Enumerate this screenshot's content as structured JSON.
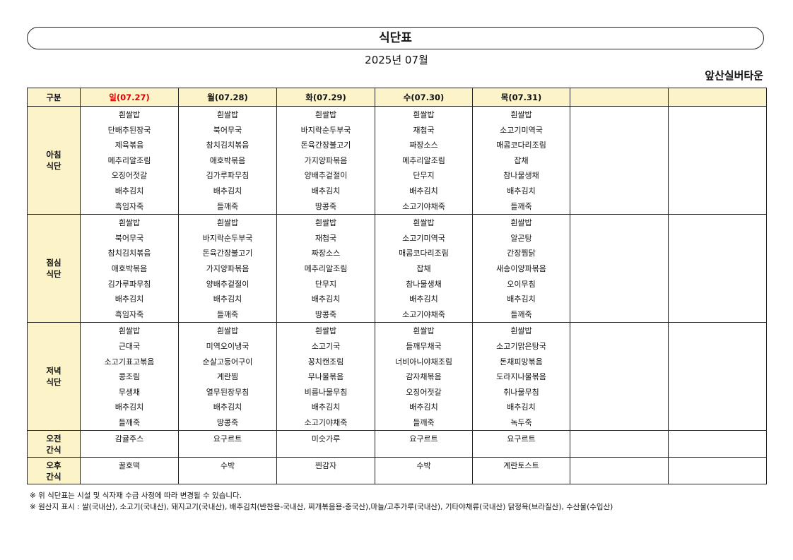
{
  "header": {
    "title": "식단표",
    "month": "2025년 07월",
    "facility": "앞산실버타운"
  },
  "colors": {
    "header_bg": "#fdf3c8",
    "sunday": "#e00000"
  },
  "table": {
    "corner": "구분",
    "days": [
      "일(07.27)",
      "월(07.28)",
      "화(07.29)",
      "수(07.30)",
      "목(07.31)",
      "",
      ""
    ],
    "rows": [
      {
        "label": [
          "아침",
          "식단"
        ],
        "type": "meal",
        "cells": [
          [
            "흰쌀밥",
            "단배추된장국",
            "제육볶음",
            "메추리알조림",
            "오징어젓갈",
            "배추김치",
            "흑임자죽"
          ],
          [
            "흰쌀밥",
            "북어무국",
            "참치김치볶음",
            "애호박볶음",
            "김가루파무침",
            "배추김치",
            "들깨죽"
          ],
          [
            "흰쌀밥",
            "바지락순두부국",
            "돈육간장불고기",
            "가지양파볶음",
            "양배추겉절이",
            "배추김치",
            "땅콩죽"
          ],
          [
            "흰쌀밥",
            "재첩국",
            "짜장소스",
            "메추리알조림",
            "단무지",
            "배추김치",
            "소고기야채죽"
          ],
          [
            "흰쌀밥",
            "소고기미역국",
            "매콤코다리조림",
            "잡채",
            "참나물생채",
            "배추김치",
            "들깨죽"
          ],
          [],
          []
        ]
      },
      {
        "label": [
          "점심",
          "식단"
        ],
        "type": "meal",
        "cells": [
          [
            "흰쌀밥",
            "북어무국",
            "참치김치볶음",
            "애호박볶음",
            "김가루파무침",
            "배추김치",
            "흑임자죽"
          ],
          [
            "흰쌀밥",
            "바지락순두부국",
            "돈육간장불고기",
            "가지양파볶음",
            "양배추겉절이",
            "배추김치",
            "들깨죽"
          ],
          [
            "흰쌀밥",
            "재첩국",
            "짜장소스",
            "메추리알조림",
            "단무지",
            "배추김치",
            "땅콩죽"
          ],
          [
            "흰쌀밥",
            "소고기미역국",
            "매콤코다리조림",
            "잡채",
            "참나물생채",
            "배추김치",
            "소고기야채죽"
          ],
          [
            "흰쌀밥",
            "알곤탕",
            "간장찜닭",
            "새송이양파볶음",
            "오이무침",
            "배추김치",
            "들깨죽"
          ],
          [],
          []
        ]
      },
      {
        "label": [
          "저녁",
          "식단"
        ],
        "type": "meal",
        "cells": [
          [
            "흰쌀밥",
            "근대국",
            "소고기표고볶음",
            "콩조림",
            "무생채",
            "배추김치",
            "들깨죽"
          ],
          [
            "흰쌀밥",
            "미역오이냉국",
            "순살고등어구이",
            "계란찜",
            "열무된장무침",
            "배추김치",
            "땅콩죽"
          ],
          [
            "흰쌀밥",
            "소고기국",
            "꽁치캔조림",
            "무나물볶음",
            "비름나물무침",
            "배추김치",
            "소고기야채죽"
          ],
          [
            "흰쌀밥",
            "들깨무채국",
            "너비아니야채조림",
            "감자채볶음",
            "오징어젓갈",
            "배추김치",
            "들깨죽"
          ],
          [
            "흰쌀밥",
            "소고기맑은탕국",
            "돈채피망볶음",
            "도라지나물볶음",
            "취나물무침",
            "배추김치",
            "녹두죽"
          ],
          [],
          []
        ]
      },
      {
        "label": [
          "오전",
          "간식"
        ],
        "type": "snack",
        "cells": [
          [
            "감귤주스"
          ],
          [
            "요구르트"
          ],
          [
            "미숫가루"
          ],
          [
            "요구르트"
          ],
          [
            "요구르트"
          ],
          [],
          []
        ]
      },
      {
        "label": [
          "오후",
          "간식"
        ],
        "type": "snack",
        "cells": [
          [
            "꿀호떡"
          ],
          [
            "수박"
          ],
          [
            "찐감자"
          ],
          [
            "수박"
          ],
          [
            "계란토스트"
          ],
          [],
          []
        ]
      }
    ]
  },
  "notes": [
    "※ 위 식단표는 시설 및 식자재 수급 사정에 따라 변경될 수 있습니다.",
    "※ 원산지 표시 : 쌀(국내산), 소고기(국내산), 돼지고기(국내산), 배추김치(반찬용-국내산, 찌개볶음용-중국산),마늘/고추가루(국내산), 기타야채류(국내산) 닭정육(브라질산), 수산물(수입산)"
  ]
}
